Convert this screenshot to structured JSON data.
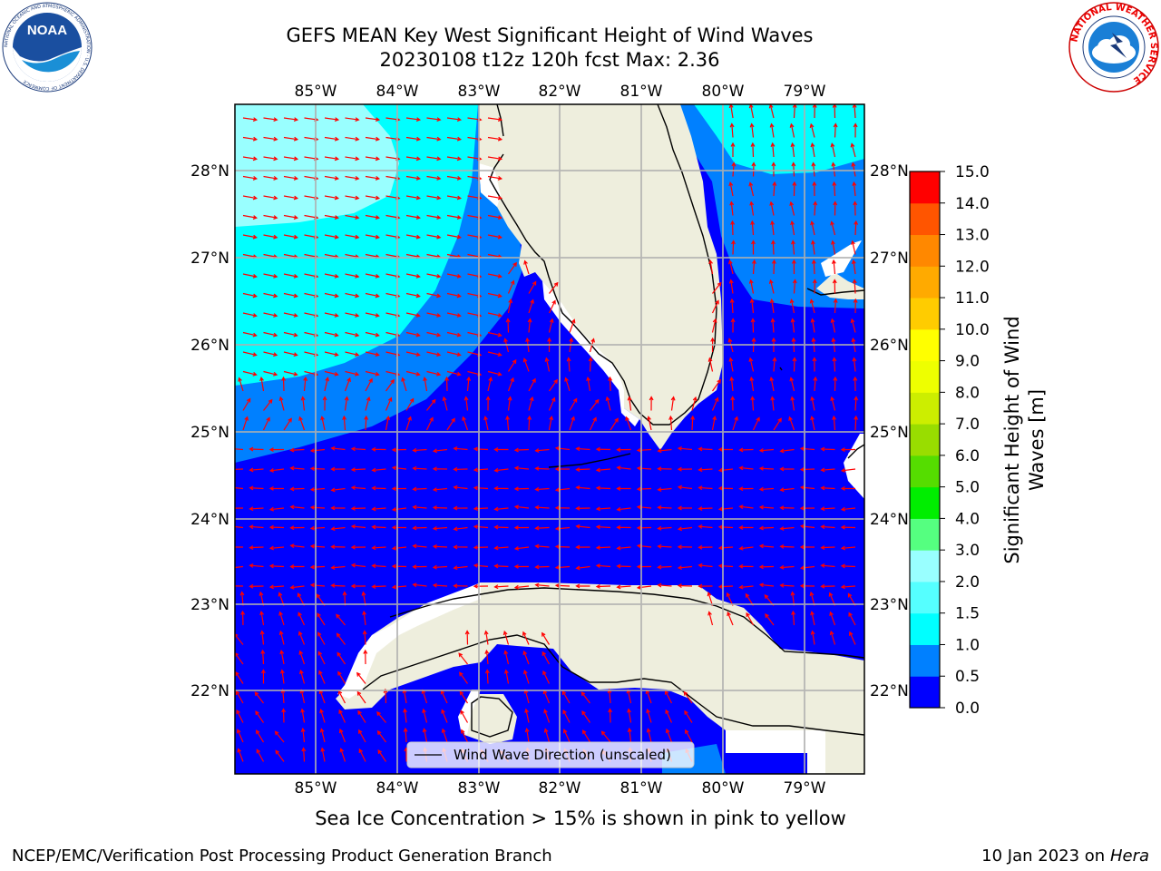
{
  "header": {
    "title_line1": "GEFS MEAN Key West Significant Height of Wind Waves",
    "title_line2": "20230108 t12z 120h fcst   Max: 2.36"
  },
  "logos": {
    "left": {
      "text": "NOAA",
      "ring_text": "NATIONAL OCEANIC AND ATMOSPHERIC ADMINISTRATION · U.S. DEPARTMENT OF COMMERCE"
    },
    "right": {
      "ring_text": "NATIONAL WEATHER SERVICE"
    }
  },
  "map": {
    "lon_labels": [
      "85°W",
      "84°W",
      "83°W",
      "82°W",
      "81°W",
      "80°W",
      "79°W"
    ],
    "lat_labels": [
      "28°N",
      "27°N",
      "26°N",
      "25°N",
      "24°N",
      "23°N",
      "22°N"
    ],
    "legend_label": "Wind Wave Direction (unscaled)",
    "colors": {
      "land": "#eeeedd",
      "ocean_low": "#0000ff",
      "ocean_mid": "#0080ff",
      "ocean_high": "#00ffff",
      "ocean_peak": "#99ffff",
      "arrow": "#ff0000",
      "grid": "#b0b0b0"
    }
  },
  "colorbar": {
    "title_line1": "Significant Height of Wind",
    "title_line2": "Waves [m]",
    "ticks": [
      "0.0",
      "0.5",
      "1.0",
      "1.5",
      "2.0",
      "3.0",
      "4.0",
      "5.0",
      "6.0",
      "7.0",
      "8.0",
      "9.0",
      "10.0",
      "11.0",
      "12.0",
      "13.0",
      "14.0",
      "15.0"
    ],
    "colors": [
      "#0000ff",
      "#0080ff",
      "#00ffff",
      "#55ffff",
      "#99ffff",
      "#55ff80",
      "#00ee00",
      "#55dd00",
      "#99dd00",
      "#ccee00",
      "#eeff00",
      "#ffff00",
      "#ffcc00",
      "#ffaa00",
      "#ff8800",
      "#ff5500",
      "#ff0000"
    ]
  },
  "footer": {
    "note": "Sea Ice Concentration > 15% is shown in pink to yellow",
    "credit_left": "NCEP/EMC/Verification Post Processing Product Generation Branch",
    "credit_right_prefix": "10 Jan 2023 on ",
    "credit_right_machine": "Hera"
  }
}
